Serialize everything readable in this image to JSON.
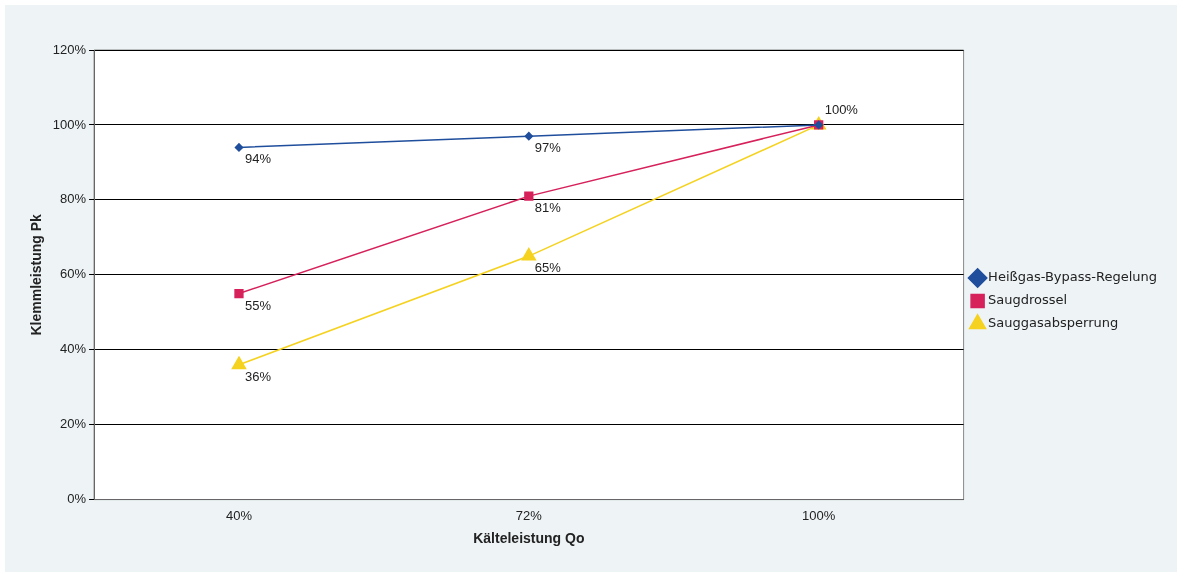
{
  "chart_data": {
    "type": "line",
    "xlabel": "Kälteleistung Qo",
    "ylabel": "Klemmleistung Pk",
    "categories": [
      "40%",
      "72%",
      "100%"
    ],
    "series": [
      {
        "name": "Heißgas-Bypass-Regelung",
        "color": "#1f4e9c",
        "marker": "diamond",
        "values": [
          94,
          97,
          100
        ],
        "value_labels": [
          "94%",
          "97%",
          "100%"
        ]
      },
      {
        "name": "Saugdrossel",
        "color": "#d6215b",
        "marker": "square",
        "values": [
          55,
          81,
          100
        ],
        "value_labels": [
          "55%",
          "81%",
          null
        ]
      },
      {
        "name": "Sauggasabsperrung",
        "color": "#f5d21f",
        "marker": "triangle",
        "values": [
          36,
          65,
          100
        ],
        "value_labels": [
          "36%",
          "65%",
          null
        ]
      }
    ],
    "ylim": [
      0,
      120
    ],
    "yticks": [
      {
        "value": 0,
        "label": "0%"
      },
      {
        "value": 20,
        "label": "20%"
      },
      {
        "value": 40,
        "label": "40%"
      },
      {
        "value": 60,
        "label": "60%"
      },
      {
        "value": 80,
        "label": "80%"
      },
      {
        "value": 100,
        "label": "100%"
      },
      {
        "value": 120,
        "label": "120%"
      }
    ],
    "grid": "y",
    "legend": "right",
    "line_style": "solid"
  }
}
